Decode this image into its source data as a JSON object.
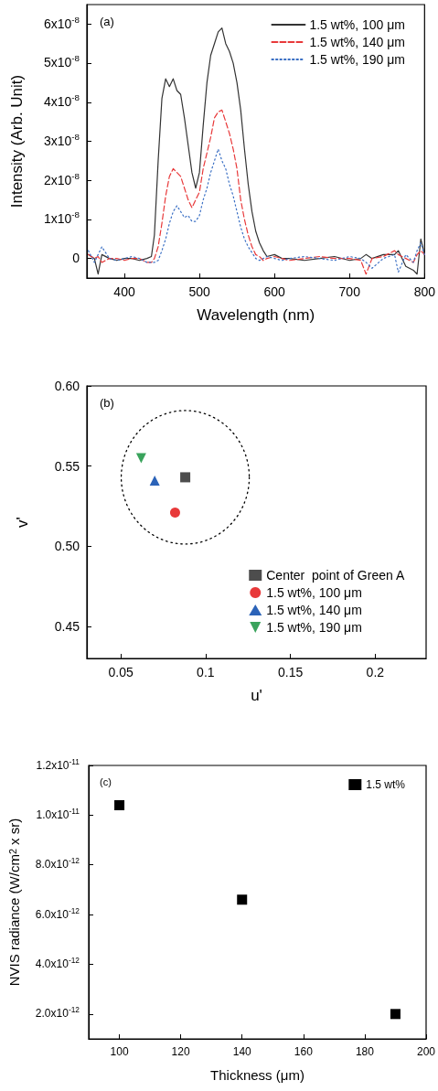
{
  "chart_data": [
    {
      "type": "line",
      "xlabel": "Wavelength (nm)",
      "ylabel": "Intensity (Arb. Unit)",
      "annotations": [
        "(a)"
      ],
      "legend": "top right",
      "marker": "none",
      "grid": false,
      "xlim": [
        350,
        800
      ],
      "xticks": [
        400,
        500,
        600,
        700,
        800
      ],
      "ylim": [
        -5e-09,
        6.5e-08
      ],
      "yticks": [
        0,
        {
          "value": 1e-08,
          "label": "1x10$^{-8}$"
        },
        {
          "value": 2e-08,
          "label": "2x10$^{-8}$"
        },
        {
          "value": 3e-08,
          "label": "3x10$^{-8}$"
        },
        {
          "value": 4e-08,
          "label": "4x10$^{-8}$"
        },
        {
          "value": 5e-08,
          "label": "5x10$^{-8}$"
        },
        {
          "value": 6e-08,
          "label": "6x10$^{-8}$"
        }
      ],
      "x": [
        352,
        360,
        365,
        370,
        380,
        390,
        400,
        410,
        420,
        430,
        436,
        440,
        445,
        450,
        455,
        460,
        465,
        470,
        475,
        480,
        485,
        490,
        495,
        500,
        505,
        510,
        515,
        520,
        525,
        530,
        535,
        540,
        545,
        550,
        555,
        560,
        565,
        570,
        575,
        580,
        585,
        590,
        600,
        610,
        620,
        640,
        660,
        680,
        700,
        715,
        722,
        730,
        745,
        760,
        765,
        775,
        785,
        790,
        795,
        800
      ],
      "series": [
        {
          "name": "1.5 wt%, 100 μm",
          "color": "#333333",
          "line_style": "solid",
          "values": [
            1e-09,
            0,
            -4e-09,
            1e-09,
            0,
            -5e-10,
            0,
            0,
            -5e-10,
            0,
            5e-10,
            6e-09,
            2.5e-08,
            4.1e-08,
            4.6e-08,
            4.4e-08,
            4.6e-08,
            4.3e-08,
            4.2e-08,
            3.6e-08,
            2.9e-08,
            2.2e-08,
            1.8e-08,
            2.2e-08,
            3.4e-08,
            4.5e-08,
            5.2e-08,
            5.5e-08,
            5.8e-08,
            5.9e-08,
            5.5e-08,
            5.3e-08,
            5e-08,
            4.5e-08,
            3.8e-08,
            2.8e-08,
            1.9e-08,
            1.2e-08,
            7e-09,
            4e-09,
            2e-09,
            5e-10,
            1e-09,
            0,
            0,
            -5e-10,
            0,
            5e-10,
            -5e-10,
            0,
            1e-09,
            0,
            1e-09,
            1e-09,
            2e-09,
            -2e-09,
            -3e-09,
            -4e-09,
            5e-09,
            1e-09
          ]
        },
        {
          "name": "1.5 wt%, 140 μm",
          "color": "#e8393a",
          "line_style": "dashed",
          "values": [
            1e-09,
            0,
            5e-10,
            -1e-09,
            0,
            0,
            -5e-10,
            0,
            0,
            -1e-09,
            -1e-09,
            0,
            3e-09,
            9e-09,
            1.6e-08,
            2.1e-08,
            2.3e-08,
            2.2e-08,
            2.1e-08,
            1.8e-08,
            1.5e-08,
            1.3e-08,
            1.5e-08,
            1.7e-08,
            2.3e-08,
            2.7e-08,
            3.1e-08,
            3.6e-08,
            3.75e-08,
            3.8e-08,
            3.5e-08,
            3.2e-08,
            2.8e-08,
            2.3e-08,
            1.5e-08,
            1e-08,
            6e-09,
            3e-09,
            1e-09,
            5e-10,
            -5e-10,
            0,
            5e-10,
            0,
            -5e-10,
            0,
            5e-10,
            0,
            0,
            -5e-10,
            -4e-09,
            0,
            5e-10,
            2e-09,
            1e-09,
            0,
            -1e-09,
            1e-09,
            2e-09,
            1e-09
          ]
        },
        {
          "name": "1.5 wt%, 190 μm",
          "color": "#3a6fc4",
          "line_style": "dotted",
          "values": [
            2e-09,
            -1e-09,
            1e-09,
            3e-09,
            0,
            -5e-10,
            0,
            5e-10,
            0,
            -1e-09,
            -1e-09,
            -1e-09,
            -5e-10,
            2e-09,
            5e-09,
            9e-09,
            1.2e-08,
            1.35e-08,
            1.2e-08,
            1.05e-08,
            1.1e-08,
            9.5e-09,
            9.5e-09,
            1.1e-08,
            1.5e-08,
            1.8e-08,
            2.2e-08,
            2.5e-08,
            2.8e-08,
            2.5e-08,
            2.3e-08,
            1.9e-08,
            1.6e-08,
            1.2e-08,
            8e-09,
            5e-09,
            3e-09,
            1.5e-09,
            0,
            -5e-10,
            0,
            5e-10,
            0,
            -5e-10,
            0,
            5e-10,
            0,
            -5e-10,
            5e-10,
            0,
            -1e-09,
            -2.5e-09,
            0,
            1e-09,
            -3.5e-09,
            1e-09,
            -1e-09,
            2e-09,
            4e-09,
            1e-09
          ]
        }
      ]
    },
    {
      "type": "scatter",
      "xlabel": "u'",
      "ylabel": "v'",
      "annotations": [
        "(b)"
      ],
      "legend": "bottom right",
      "grid": false,
      "xlim": [
        0.03,
        0.23
      ],
      "xticks": [
        0.05,
        0.1,
        0.15,
        0.2
      ],
      "ylim": [
        0.43,
        0.6
      ],
      "yticks": [
        {
          "value": 0.45,
          "label": "0.45"
        },
        {
          "value": 0.5,
          "label": "0.50"
        },
        {
          "value": 0.55,
          "label": "0.55"
        },
        {
          "value": 0.6,
          "label": "0.60"
        }
      ],
      "series": [
        {
          "name": "Center  point of Green A",
          "color": "#4d4d4d",
          "marker": "square",
          "x": [
            0.088
          ],
          "values": [
            0.543
          ]
        },
        {
          "name": "1.5 wt%, 100 μm",
          "color": "#e8393a",
          "marker": "circle",
          "x": [
            0.082
          ],
          "values": [
            0.521
          ]
        },
        {
          "name": "1.5 wt%, 140 μm",
          "color": "#2b63b8",
          "marker": "triangle",
          "x": [
            0.07
          ],
          "values": [
            0.541
          ]
        },
        {
          "name": "1.5 wt%, 190 μm",
          "color": "#3aa35c",
          "marker": "triangle-down",
          "x": [
            0.062
          ],
          "values": [
            0.555
          ]
        }
      ]
    },
    {
      "type": "scatter",
      "xlabel": "Thickness (μm)",
      "ylabel": "NVIS radiance (W/cm$^{2}$ x sr)",
      "annotations": [
        "(c)"
      ],
      "legend": "top right",
      "marker": "square",
      "grid": false,
      "xlim": [
        90,
        200
      ],
      "xticks": [
        100,
        120,
        140,
        160,
        180,
        200
      ],
      "ylim": [
        1e-12,
        1.2e-11
      ],
      "yticks": [
        {
          "value": 2e-12,
          "label": "2.0x10$^{-12}$"
        },
        {
          "value": 4e-12,
          "label": "4.0x10$^{-12}$"
        },
        {
          "value": 6e-12,
          "label": "6.0x10$^{-12}$"
        },
        {
          "value": 8e-12,
          "label": "8.0x10$^{-12}$"
        },
        {
          "value": 1e-11,
          "label": "1.0x10$^{-11}$"
        },
        {
          "value": 1.2e-11,
          "label": "1.2x10$^{-11}$"
        }
      ],
      "x": [
        100,
        140,
        190
      ],
      "series": [
        {
          "name": "1.5 wt%",
          "color": "#000000",
          "values": [
            1.04e-11,
            6.6e-12,
            2e-12
          ]
        }
      ]
    }
  ]
}
